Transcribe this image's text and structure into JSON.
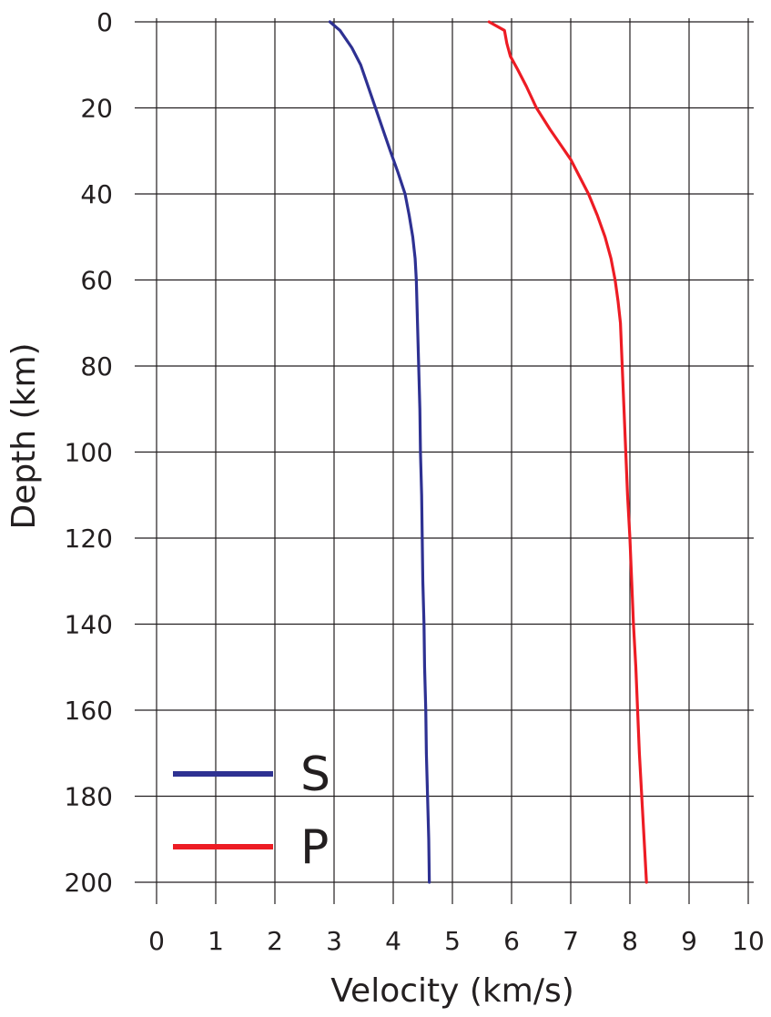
{
  "chart_data": {
    "type": "line",
    "xlabel": "Velocity (km/s)",
    "ylabel": "Depth (km)",
    "xlim": [
      0,
      10
    ],
    "ylim": [
      0,
      200
    ],
    "y_inverted": true,
    "grid": true,
    "legend_position": "bottom-left",
    "x_ticks": [
      "0",
      "1",
      "2",
      "3",
      "4",
      "5",
      "6",
      "7",
      "8",
      "9",
      "10"
    ],
    "y_ticks": [
      "0",
      "20",
      "40",
      "60",
      "80",
      "100",
      "120",
      "140",
      "160",
      "180",
      "200"
    ],
    "series": [
      {
        "name": "S",
        "color": "#2e3192",
        "points": [
          [
            2.93,
            0
          ],
          [
            3.1,
            2
          ],
          [
            3.3,
            6
          ],
          [
            3.45,
            10
          ],
          [
            3.55,
            14
          ],
          [
            3.65,
            18
          ],
          [
            3.75,
            22
          ],
          [
            3.85,
            26
          ],
          [
            3.95,
            30
          ],
          [
            4.08,
            35
          ],
          [
            4.2,
            40
          ],
          [
            4.27,
            45
          ],
          [
            4.33,
            50
          ],
          [
            4.37,
            55
          ],
          [
            4.39,
            60
          ],
          [
            4.41,
            70
          ],
          [
            4.43,
            80
          ],
          [
            4.45,
            90
          ],
          [
            4.46,
            100
          ],
          [
            4.48,
            110
          ],
          [
            4.49,
            120
          ],
          [
            4.5,
            130
          ],
          [
            4.52,
            140
          ],
          [
            4.53,
            150
          ],
          [
            4.55,
            160
          ],
          [
            4.56,
            170
          ],
          [
            4.58,
            180
          ],
          [
            4.6,
            190
          ],
          [
            4.61,
            200
          ]
        ]
      },
      {
        "name": "P",
        "color": "#ed1c24",
        "points": [
          [
            5.62,
            0
          ],
          [
            5.88,
            2
          ],
          [
            5.92,
            5
          ],
          [
            5.98,
            8
          ],
          [
            6.1,
            11
          ],
          [
            6.25,
            15
          ],
          [
            6.42,
            20
          ],
          [
            6.65,
            25
          ],
          [
            6.85,
            29
          ],
          [
            7.0,
            32
          ],
          [
            7.15,
            36
          ],
          [
            7.3,
            40
          ],
          [
            7.45,
            45
          ],
          [
            7.58,
            50
          ],
          [
            7.68,
            55
          ],
          [
            7.75,
            60
          ],
          [
            7.8,
            65
          ],
          [
            7.84,
            70
          ],
          [
            7.87,
            80
          ],
          [
            7.9,
            90
          ],
          [
            7.93,
            100
          ],
          [
            7.96,
            110
          ],
          [
            8.0,
            120
          ],
          [
            8.03,
            130
          ],
          [
            8.06,
            140
          ],
          [
            8.1,
            150
          ],
          [
            8.13,
            160
          ],
          [
            8.16,
            170
          ],
          [
            8.2,
            180
          ],
          [
            8.24,
            190
          ],
          [
            8.28,
            200
          ]
        ]
      }
    ]
  }
}
